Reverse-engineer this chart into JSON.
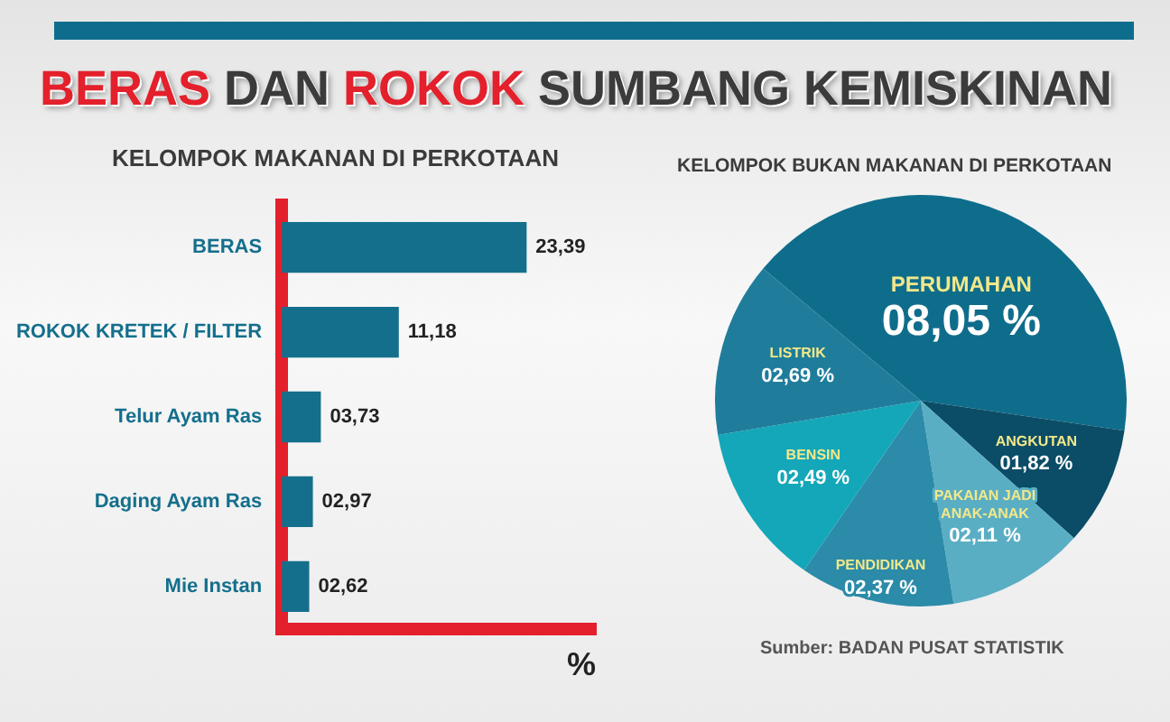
{
  "chart_data": [
    {
      "type": "bar",
      "title": "BERAS DAN ROKOK SUMBANG KEMISKINAN",
      "subtitle": "KELOMPOK MAKANAN DI PERKOTAAN",
      "xlabel": "%",
      "orientation": "horizontal",
      "categories": [
        "BERAS",
        "ROKOK KRETEK / FILTER",
        "Telur Ayam Ras",
        "Daging Ayam Ras",
        "Mie Instan"
      ],
      "values": [
        23.39,
        11.18,
        3.73,
        2.97,
        2.62
      ],
      "value_labels": [
        "23,39",
        "11,18",
        "03,73",
        "02,97",
        "02,62"
      ],
      "color": "#146f8c",
      "tick_labels": "y"
    },
    {
      "type": "pie",
      "title": "KELOMPOK BUKAN MAKANAN DI PERKOTAAN",
      "categories": [
        "PERUMAHAN",
        "ANGKUTAN",
        "PAKAIAN JADI ANAK-ANAK",
        "PENDIDIKAN",
        "BENSIN",
        "LISTRIK"
      ],
      "values": [
        8.05,
        1.82,
        2.11,
        2.37,
        2.49,
        2.69
      ],
      "value_labels": [
        "08,05 %",
        "01,82 %",
        "02,11 %",
        "02,37 %",
        "02,49 %",
        "02,69 %"
      ],
      "colors": [
        "#0f6d8c",
        "#0b4d66",
        "#5aaec4",
        "#2b8ba8",
        "#14a7b9",
        "#1f7d9b"
      ],
      "annotations": [
        "Sumber: BADAN PUSAT STATISTIK"
      ]
    }
  ]
}
